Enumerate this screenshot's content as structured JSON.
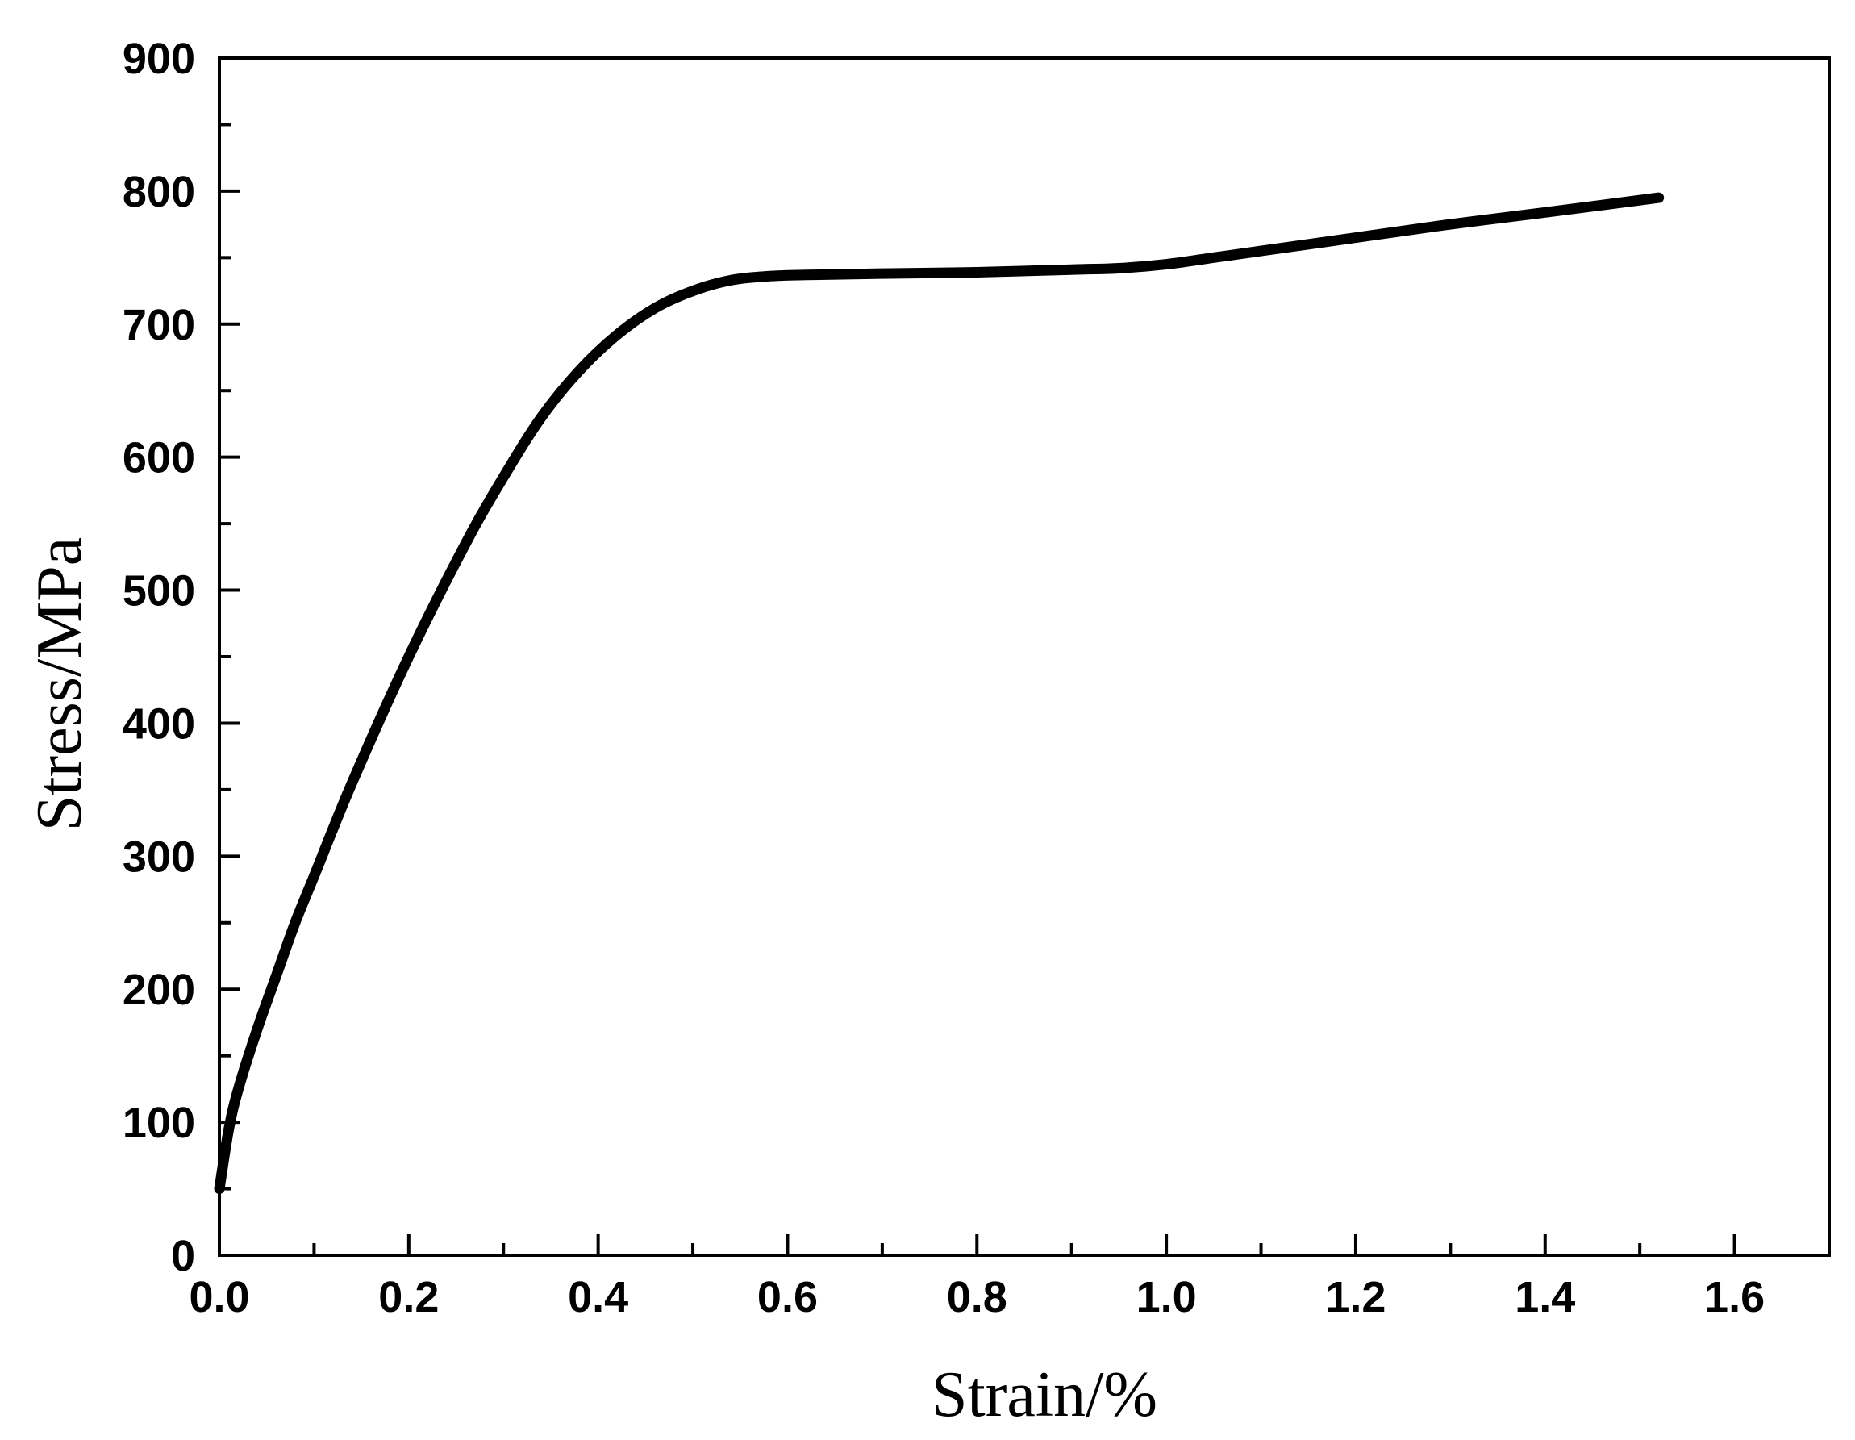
{
  "chart_data": {
    "type": "line",
    "title": "",
    "xlabel": "Strain/%",
    "ylabel": "Stress/MPa",
    "xlim": [
      0.0,
      1.7
    ],
    "ylim": [
      0,
      900
    ],
    "x_ticks": [
      0.0,
      0.2,
      0.4,
      0.6,
      0.8,
      1.0,
      1.2,
      1.4,
      1.6
    ],
    "x_tick_labels": [
      "0.0",
      "0.2",
      "0.4",
      "0.6",
      "0.8",
      "1.0",
      "1.2",
      "1.4",
      "1.6"
    ],
    "y_ticks": [
      0,
      100,
      200,
      300,
      400,
      500,
      600,
      700,
      800,
      900
    ],
    "y_tick_labels": [
      "0",
      "100",
      "200",
      "300",
      "400",
      "500",
      "600",
      "700",
      "800",
      "900"
    ],
    "grid": false,
    "legend": "none",
    "series": [
      {
        "color": "#000000",
        "x": [
          0.0,
          0.01,
          0.02,
          0.04,
          0.06,
          0.08,
          0.1,
          0.14,
          0.2,
          0.26,
          0.3,
          0.34,
          0.38,
          0.42,
          0.46,
          0.5,
          0.54,
          0.58,
          0.62,
          0.7,
          0.8,
          0.9,
          0.95,
          1.0,
          1.05,
          1.1,
          1.2,
          1.3,
          1.4,
          1.52
        ],
        "y": [
          50,
          95,
          125,
          170,
          210,
          250,
          285,
          355,
          450,
          535,
          585,
          630,
          665,
          692,
          712,
          725,
          733,
          736,
          737,
          738,
          739,
          741,
          742,
          745,
          750,
          755,
          765,
          775,
          784,
          795
        ]
      }
    ]
  }
}
